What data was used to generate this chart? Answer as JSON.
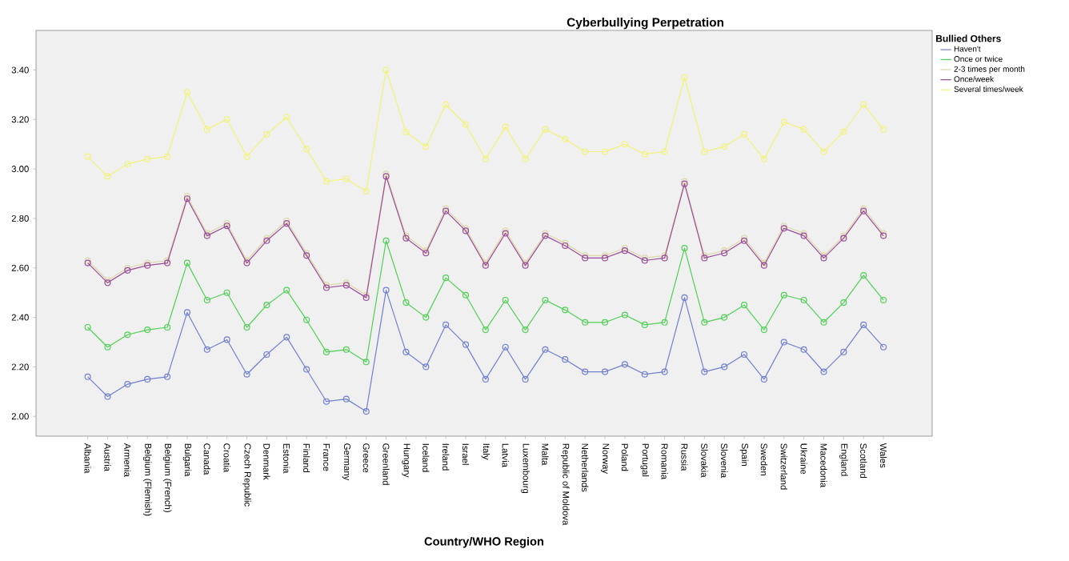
{
  "chart_data": {
    "type": "line",
    "title": "Cyberbullying Perpetration",
    "xlabel": "Country/WHO Region",
    "legend_title": "Bullied Others",
    "categories": [
      "Albania",
      "Austria",
      "Armenia",
      "Belgium (Flemish)",
      "Belgium (French)",
      "Bulgaria",
      "Canada",
      "Croatia",
      "Czech Republic",
      "Denmark",
      "Estonia",
      "Finland",
      "France",
      "Germany",
      "Greece",
      "Greenland",
      "Hungary",
      "Iceland",
      "Ireland",
      "Israel",
      "Italy",
      "Latvia",
      "Luxembourg",
      "Malta",
      "Republic of Moldova",
      "Netherlands",
      "Norway",
      "Poland",
      "Portugal",
      "Romania",
      "Russia",
      "Slovakia",
      "Slovenia",
      "Spain",
      "Sweden",
      "Switzerland",
      "Ukraine",
      "Macedonia",
      "England",
      "Scotland",
      "Wales"
    ],
    "series": [
      {
        "name": "Haven't",
        "color": "#6f7fcf",
        "values": [
          2.16,
          2.08,
          2.13,
          2.15,
          2.16,
          2.42,
          2.27,
          2.31,
          2.17,
          2.25,
          2.32,
          2.19,
          2.06,
          2.07,
          2.02,
          2.51,
          2.26,
          2.2,
          2.37,
          2.29,
          2.15,
          2.28,
          2.15,
          2.27,
          2.23,
          2.18,
          2.18,
          2.21,
          2.17,
          2.18,
          2.48,
          2.18,
          2.2,
          2.25,
          2.15,
          2.3,
          2.27,
          2.18,
          2.26,
          2.37,
          2.28
        ]
      },
      {
        "name": "Once or twice",
        "color": "#4fcf55",
        "values": [
          2.36,
          2.28,
          2.33,
          2.35,
          2.36,
          2.62,
          2.47,
          2.5,
          2.36,
          2.45,
          2.51,
          2.39,
          2.26,
          2.27,
          2.22,
          2.71,
          2.46,
          2.4,
          2.56,
          2.49,
          2.35,
          2.47,
          2.35,
          2.47,
          2.43,
          2.38,
          2.38,
          2.41,
          2.37,
          2.38,
          2.68,
          2.38,
          2.4,
          2.45,
          2.35,
          2.49,
          2.47,
          2.38,
          2.46,
          2.57,
          2.47
        ]
      },
      {
        "name": "2-3 times per month",
        "color": "#ddd8a8",
        "values": [
          2.63,
          2.55,
          2.6,
          2.62,
          2.63,
          2.89,
          2.74,
          2.78,
          2.63,
          2.72,
          2.79,
          2.66,
          2.53,
          2.54,
          2.49,
          2.98,
          2.73,
          2.67,
          2.84,
          2.76,
          2.62,
          2.75,
          2.62,
          2.74,
          2.7,
          2.65,
          2.65,
          2.68,
          2.64,
          2.65,
          2.95,
          2.65,
          2.67,
          2.72,
          2.62,
          2.77,
          2.74,
          2.65,
          2.73,
          2.84,
          2.74
        ]
      },
      {
        "name": "Once/week",
        "color": "#9a4c9a",
        "values": [
          2.62,
          2.54,
          2.59,
          2.61,
          2.62,
          2.88,
          2.73,
          2.77,
          2.62,
          2.71,
          2.78,
          2.65,
          2.52,
          2.53,
          2.48,
          2.97,
          2.72,
          2.66,
          2.83,
          2.75,
          2.61,
          2.74,
          2.61,
          2.73,
          2.69,
          2.64,
          2.64,
          2.67,
          2.63,
          2.64,
          2.94,
          2.64,
          2.66,
          2.71,
          2.61,
          2.76,
          2.73,
          2.64,
          2.72,
          2.83,
          2.73
        ]
      },
      {
        "name": "Several times/week",
        "color": "#f3f37a",
        "values": [
          3.05,
          2.97,
          3.02,
          3.04,
          3.05,
          3.31,
          3.16,
          3.2,
          3.05,
          3.14,
          3.21,
          3.08,
          2.95,
          2.96,
          2.91,
          3.4,
          3.15,
          3.09,
          3.26,
          3.18,
          3.04,
          3.17,
          3.04,
          3.16,
          3.12,
          3.07,
          3.07,
          3.1,
          3.06,
          3.07,
          3.37,
          3.07,
          3.09,
          3.14,
          3.04,
          3.19,
          3.16,
          3.07,
          3.15,
          3.26,
          3.16
        ]
      }
    ],
    "ylim": [
      1.92,
      3.56
    ],
    "yticks": [
      {
        "value": 2.0,
        "label": "2.00"
      },
      {
        "value": 2.2,
        "label": "2.20"
      },
      {
        "value": 2.4,
        "label": "2.40"
      },
      {
        "value": 2.6,
        "label": "2.60"
      },
      {
        "value": 2.8,
        "label": "2.80"
      },
      {
        "value": 3.0,
        "label": "3.00"
      },
      {
        "value": 3.2,
        "label": "3.20"
      },
      {
        "value": 3.4,
        "label": "3.40"
      }
    ],
    "grid": false,
    "legend": "top right",
    "marker": "circle",
    "line_style": "solid"
  }
}
